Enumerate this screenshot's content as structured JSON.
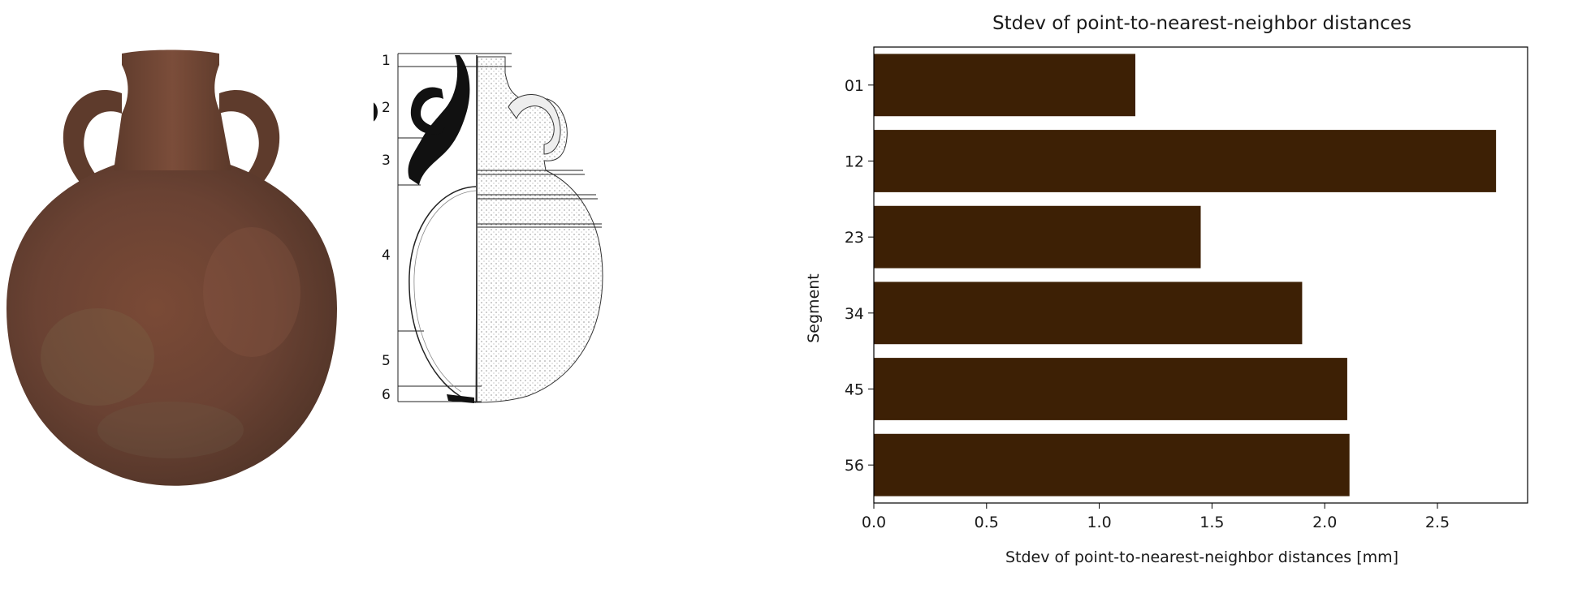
{
  "photo": {
    "subject": "photograph of a two-handled ceramic jug"
  },
  "drawing": {
    "segment_labels": [
      "1",
      "2",
      "3",
      "4",
      "5",
      "6"
    ]
  },
  "colors": {
    "bar": "#3d2005",
    "axis": "#000000",
    "text": "#1a1a1a",
    "drawing_ink": "#111111"
  },
  "chart_data": {
    "type": "bar",
    "orientation": "horizontal",
    "title": "Stdev of point-to-nearest-neighbor distances",
    "xlabel": "Stdev of point-to-nearest-neighbor distances [mm]",
    "ylabel": "Segment",
    "categories": [
      "01",
      "12",
      "23",
      "34",
      "45",
      "56"
    ],
    "values": [
      1.16,
      2.76,
      1.45,
      1.9,
      2.1,
      2.11
    ],
    "xlim": [
      0,
      2.9
    ],
    "xticks": [
      "0.0",
      "0.5",
      "1.0",
      "1.5",
      "2.0",
      "2.5"
    ],
    "grid": false,
    "legend": "none"
  }
}
